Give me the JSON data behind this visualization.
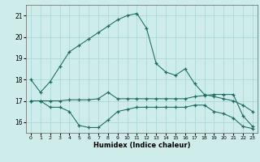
{
  "xlabel": "Humidex (Indice chaleur)",
  "background_color": "#ceecea",
  "grid_color": "#aed8d4",
  "line_color": "#1a6b60",
  "xlim": [
    -0.5,
    23.5
  ],
  "ylim": [
    15.5,
    21.5
  ],
  "yticks": [
    16,
    17,
    18,
    19,
    20,
    21
  ],
  "ytick_labels": [
    "16",
    "17",
    "18",
    "19",
    "20",
    "21"
  ],
  "xticks": [
    0,
    1,
    2,
    3,
    4,
    5,
    6,
    7,
    8,
    9,
    10,
    11,
    12,
    13,
    14,
    15,
    16,
    17,
    18,
    19,
    20,
    21,
    22,
    23
  ],
  "series1_x": [
    0,
    1,
    2,
    3,
    4,
    5,
    6,
    7,
    8,
    9,
    10,
    11,
    12,
    13,
    14,
    15,
    16,
    17,
    18,
    19,
    20,
    21,
    22,
    23
  ],
  "series1_y": [
    18.0,
    17.4,
    17.9,
    18.6,
    19.3,
    19.6,
    19.9,
    20.2,
    20.5,
    20.8,
    21.0,
    21.1,
    20.4,
    18.75,
    18.35,
    18.2,
    18.5,
    17.8,
    17.3,
    17.2,
    17.1,
    17.0,
    16.8,
    16.5
  ],
  "series2_x": [
    0,
    1,
    2,
    3,
    4,
    5,
    6,
    7,
    8,
    9,
    10,
    11,
    12,
    13,
    14,
    15,
    16,
    17,
    18,
    19,
    20,
    21,
    22,
    23
  ],
  "series2_y": [
    17.0,
    17.0,
    17.0,
    17.0,
    17.05,
    17.05,
    17.05,
    17.1,
    17.4,
    17.1,
    17.1,
    17.1,
    17.1,
    17.1,
    17.1,
    17.1,
    17.1,
    17.2,
    17.25,
    17.3,
    17.3,
    17.3,
    16.3,
    15.8
  ],
  "series3_x": [
    0,
    1,
    2,
    3,
    4,
    5,
    6,
    7,
    8,
    9,
    10,
    11,
    12,
    13,
    14,
    15,
    16,
    17,
    18,
    19,
    20,
    21,
    22,
    23
  ],
  "series3_y": [
    17.0,
    17.0,
    16.7,
    16.7,
    16.5,
    15.85,
    15.75,
    15.75,
    16.1,
    16.5,
    16.6,
    16.7,
    16.7,
    16.7,
    16.7,
    16.7,
    16.7,
    16.8,
    16.8,
    16.5,
    16.4,
    16.2,
    15.8,
    15.7
  ]
}
